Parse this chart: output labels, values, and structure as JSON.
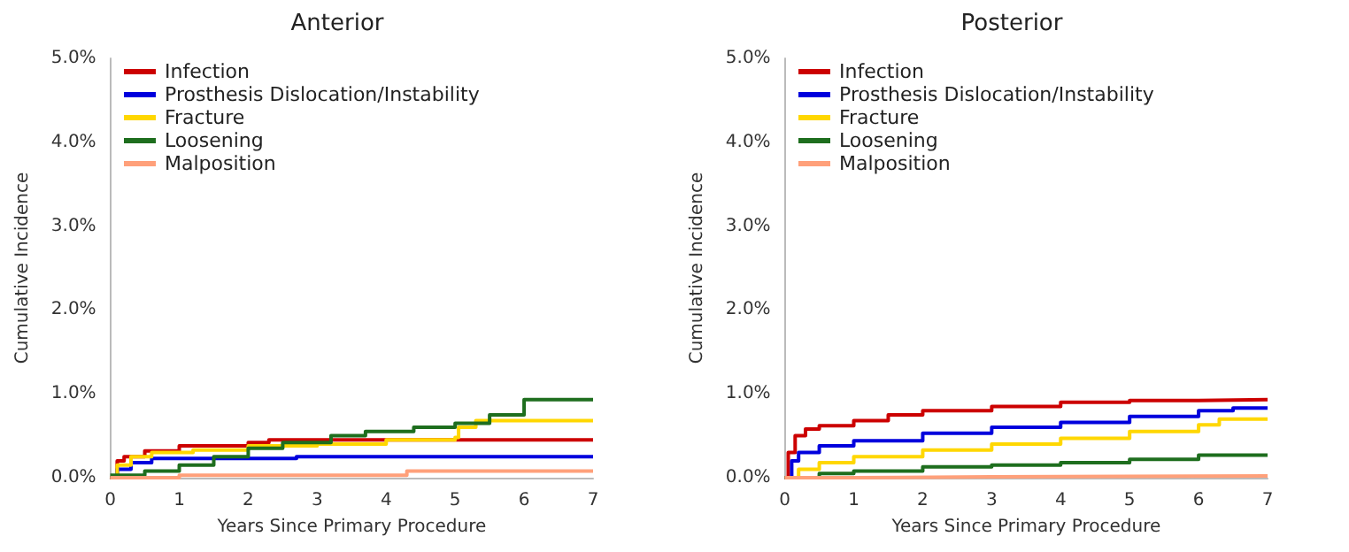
{
  "chart_data": [
    {
      "type": "step",
      "title": "Anterior",
      "xlabel": "Years Since Primary Procedure",
      "ylabel": "Cumulative Incidence",
      "xlim": [
        0,
        7
      ],
      "xticks": [
        0,
        1,
        2,
        3,
        4,
        5,
        6,
        7
      ],
      "ylim": [
        0,
        5
      ],
      "yticks": [
        {
          "value": 0,
          "label": "0.0%"
        },
        {
          "value": 1,
          "label": "1.0%"
        },
        {
          "value": 2,
          "label": "2.0%"
        },
        {
          "value": 3,
          "label": "3.0%"
        },
        {
          "value": 4,
          "label": "4.0%"
        },
        {
          "value": 5,
          "label": "5.0%"
        }
      ],
      "grid": false,
      "legend": "top left",
      "series": [
        {
          "name": "Infection",
          "color": "#cc0000",
          "x": [
            0,
            0.1,
            0.2,
            0.5,
            1.0,
            2.0,
            2.3,
            7
          ],
          "values": [
            0,
            0.2,
            0.25,
            0.32,
            0.38,
            0.42,
            0.45,
            0.45
          ]
        },
        {
          "name": "Prosthesis Dislocation/Instability",
          "color": "#0000dd",
          "x": [
            0,
            0.1,
            0.3,
            0.6,
            2.7,
            7
          ],
          "values": [
            0,
            0.1,
            0.18,
            0.23,
            0.25,
            0.25
          ]
        },
        {
          "name": "Fracture",
          "color": "#ffd700",
          "x": [
            0,
            0.1,
            0.3,
            0.6,
            1.2,
            2,
            3,
            4,
            5,
            5.05,
            5.3,
            7
          ],
          "values": [
            0,
            0.15,
            0.25,
            0.3,
            0.33,
            0.38,
            0.4,
            0.45,
            0.48,
            0.6,
            0.68,
            0.68
          ]
        },
        {
          "name": "Loosening",
          "color": "#1e6e1e",
          "x": [
            0,
            0.5,
            1,
            1.5,
            2,
            2.5,
            3.2,
            3.7,
            4.4,
            5,
            5.5,
            6,
            7
          ],
          "values": [
            0.03,
            0.08,
            0.15,
            0.25,
            0.35,
            0.42,
            0.5,
            0.55,
            0.6,
            0.65,
            0.75,
            0.93,
            0.93
          ]
        },
        {
          "name": "Malposition",
          "color": "#ffa07a",
          "x": [
            0,
            1,
            4.3,
            7
          ],
          "values": [
            0,
            0.03,
            0.08,
            0.08
          ]
        }
      ]
    },
    {
      "type": "step",
      "title": "Posterior",
      "xlabel": "Years Since Primary Procedure",
      "ylabel": "Cumulative Incidence",
      "xlim": [
        0,
        7
      ],
      "xticks": [
        0,
        1,
        2,
        3,
        4,
        5,
        6,
        7
      ],
      "ylim": [
        0,
        5
      ],
      "yticks": [
        {
          "value": 0,
          "label": "0.0%"
        },
        {
          "value": 1,
          "label": "1.0%"
        },
        {
          "value": 2,
          "label": "2.0%"
        },
        {
          "value": 3,
          "label": "3.0%"
        },
        {
          "value": 4,
          "label": "4.0%"
        },
        {
          "value": 5,
          "label": "5.0%"
        }
      ],
      "grid": false,
      "legend": "top left",
      "series": [
        {
          "name": "Infection",
          "color": "#cc0000",
          "x": [
            0,
            0.05,
            0.15,
            0.3,
            0.5,
            1,
            1.5,
            2,
            3,
            4,
            5,
            6,
            7
          ],
          "values": [
            0,
            0.3,
            0.5,
            0.58,
            0.62,
            0.68,
            0.75,
            0.8,
            0.85,
            0.9,
            0.92,
            0.93,
            0.93
          ]
        },
        {
          "name": "Prosthesis Dislocation/Instability",
          "color": "#0000dd",
          "x": [
            0,
            0.1,
            0.2,
            0.5,
            1,
            2,
            3,
            4,
            5,
            6,
            6.5,
            7
          ],
          "values": [
            0,
            0.2,
            0.3,
            0.38,
            0.44,
            0.53,
            0.6,
            0.66,
            0.73,
            0.8,
            0.83,
            0.84
          ]
        },
        {
          "name": "Fracture",
          "color": "#ffd700",
          "x": [
            0,
            0.2,
            0.5,
            1,
            2,
            3,
            4,
            5,
            6,
            6.3,
            7
          ],
          "values": [
            0,
            0.1,
            0.18,
            0.25,
            0.33,
            0.4,
            0.47,
            0.55,
            0.63,
            0.7,
            0.7
          ]
        },
        {
          "name": "Loosening",
          "color": "#1e6e1e",
          "x": [
            0,
            0.5,
            1,
            2,
            3,
            4,
            5,
            6,
            7
          ],
          "values": [
            0,
            0.05,
            0.08,
            0.13,
            0.15,
            0.18,
            0.22,
            0.27,
            0.27
          ]
        },
        {
          "name": "Malposition",
          "color": "#ffa07a",
          "x": [
            0,
            1,
            3,
            7
          ],
          "values": [
            0,
            0.01,
            0.02,
            0.02
          ]
        }
      ]
    }
  ]
}
